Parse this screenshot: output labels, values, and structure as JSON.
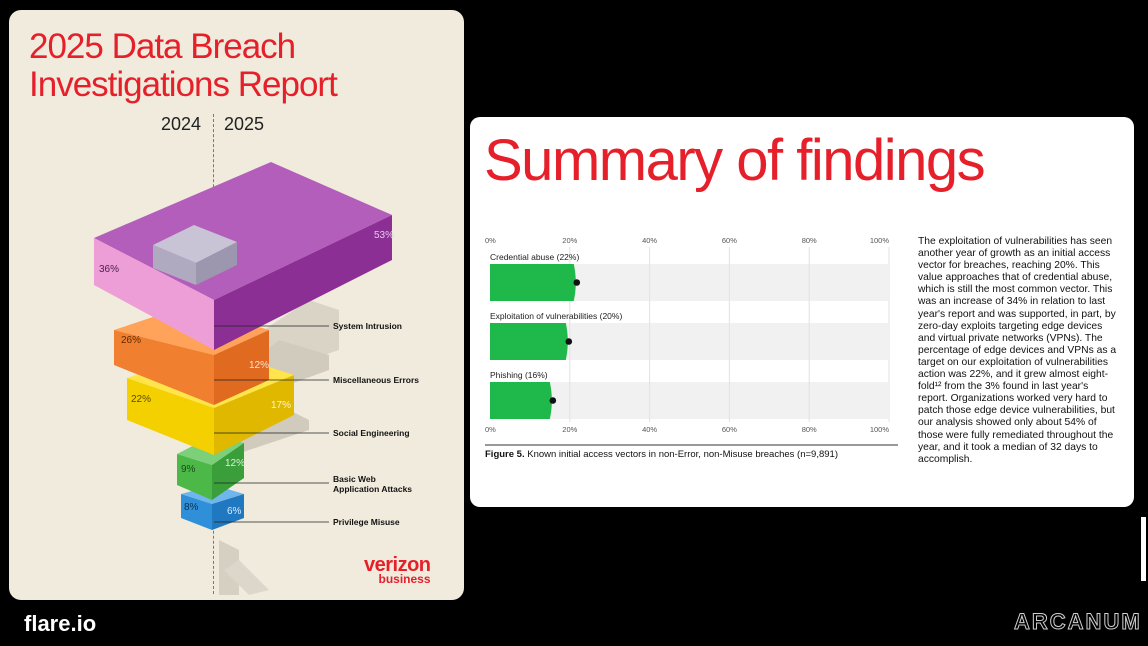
{
  "cover": {
    "title_line1": "2025 Data Breach",
    "title_line2": "Investigations Report",
    "year_left": "2024",
    "year_right": "2025",
    "logo_line1": "verizon",
    "logo_line2": "business",
    "layers": [
      {
        "label": "System Intrusion",
        "pct_2024": "36%",
        "pct_2025": "53%",
        "color": "#9b3fa3"
      },
      {
        "label": "Miscellaneous Errors",
        "pct_2024": "26%",
        "pct_2025": "12%",
        "color": "#f08030"
      },
      {
        "label": "Social Engineering",
        "pct_2024": "22%",
        "pct_2025": "17%",
        "color": "#f5d000"
      },
      {
        "label": "Basic Web",
        "label2": "Application Attacks",
        "pct_2024": "9%",
        "pct_2025": "12%",
        "color": "#4cb848"
      },
      {
        "label": "Privilege Misuse",
        "pct_2024": "8%",
        "pct_2025": "6%",
        "color": "#2f8fd8"
      }
    ]
  },
  "brand": "flare.io",
  "watermark": "ARCANUM",
  "slide": {
    "title": "Summary of findings",
    "caption_figure": "Figure 5.",
    "caption_text": " Known initial access vectors in non-Error, non-Misuse breaches (n=9,891)",
    "summary": "The exploitation of vulnerabilities has seen another year of growth as an initial access vector for breaches, reaching 20%. This value approaches that of credential abuse, which is still the most common vector. This was an increase of 34% in relation to last year's report and was supported, in part, by zero-day exploits targeting edge devices and virtual private networks (VPNs). The percentage of edge devices and VPNs as a target on our exploitation of vulnerabilities action was 22%, and it grew almost eight-fold¹² from the 3% found in last year's report. Organizations worked very hard to patch those edge device vulnerabilities, but our analysis showed only about 54% of those were fully remediated throughout the year, and it took a median of 32 days to accomplish."
  },
  "chart_data": {
    "type": "bar",
    "orientation": "horizontal",
    "categories": [
      "Credential abuse (22%)",
      "Exploitation of vulnerabilities (20%)",
      "Phishing (16%)"
    ],
    "values": [
      22,
      20,
      16
    ],
    "xlim": [
      0,
      100
    ],
    "xticks": [
      "0%",
      "20%",
      "40%",
      "60%",
      "80%",
      "100%"
    ],
    "bar_color": "#1fb84a",
    "grid": true
  }
}
